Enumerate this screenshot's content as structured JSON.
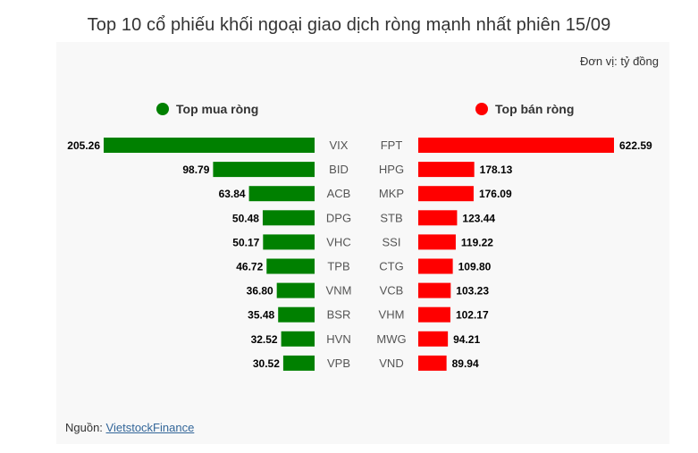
{
  "title": "Top 10 cổ phiếu khối ngoại giao dịch ròng mạnh nhất phiên 15/09",
  "unit": "Đơn vị: tỷ đồng",
  "source_prefix": "Nguồn: ",
  "source_link": "VietstockFinance",
  "colors": {
    "buy": "#008000",
    "sell": "#ff0000"
  },
  "chart_data": [
    {
      "type": "bar",
      "orientation": "horizontal",
      "series_name": "Top mua ròng",
      "categories": [
        "VIX",
        "BID",
        "ACB",
        "DPG",
        "VHC",
        "TPB",
        "VNM",
        "BSR",
        "HVN",
        "VPB"
      ],
      "values": [
        205.26,
        98.79,
        63.84,
        50.48,
        50.17,
        46.72,
        36.8,
        35.48,
        32.52,
        30.52
      ],
      "labels": [
        "205.26",
        "98.79",
        "63.84",
        "50.48",
        "50.17",
        "46.72",
        "36.80",
        "35.48",
        "32.52",
        "30.52"
      ],
      "color": "#008000"
    },
    {
      "type": "bar",
      "orientation": "horizontal",
      "series_name": "Top bán ròng",
      "categories": [
        "FPT",
        "HPG",
        "MKP",
        "STB",
        "SSI",
        "CTG",
        "VCB",
        "VHM",
        "MWG",
        "VND"
      ],
      "values": [
        622.59,
        178.13,
        176.09,
        123.44,
        119.22,
        109.8,
        103.23,
        102.17,
        94.21,
        89.94
      ],
      "labels": [
        "622.59",
        "178.13",
        "176.09",
        "123.44",
        "119.22",
        "109.80",
        "103.23",
        "102.17",
        "94.21",
        "89.94"
      ],
      "color": "#ff0000"
    }
  ]
}
